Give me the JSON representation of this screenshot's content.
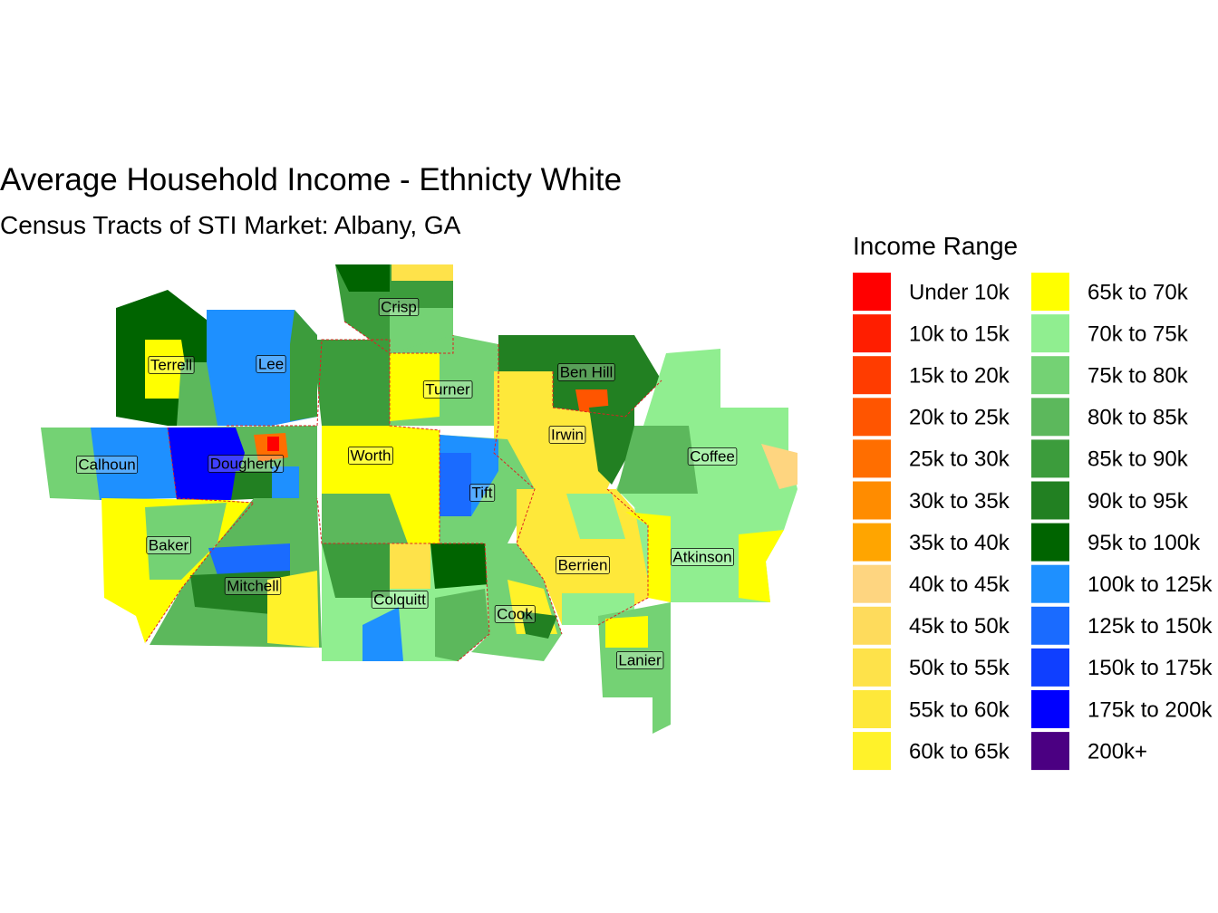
{
  "title": "Average Household Income - Ethnicty White",
  "subtitle": "Census Tracts of STI Market: Albany, GA",
  "legend": {
    "title": "Income Range",
    "items": [
      {
        "label": "Under 10k",
        "color": "#ff0000"
      },
      {
        "label": "10k to 15k",
        "color": "#ff1e00"
      },
      {
        "label": "15k to 20k",
        "color": "#ff3c00"
      },
      {
        "label": "20k to 25k",
        "color": "#ff5500"
      },
      {
        "label": "25k to 30k",
        "color": "#ff6e00"
      },
      {
        "label": "30k to 35k",
        "color": "#ff8c00"
      },
      {
        "label": "35k to 40k",
        "color": "#ffa500"
      },
      {
        "label": "40k to 45k",
        "color": "#fed580"
      },
      {
        "label": "45k to 50k",
        "color": "#fedb5c"
      },
      {
        "label": "50k to 55k",
        "color": "#fee24a"
      },
      {
        "label": "55k to 60k",
        "color": "#fee83a"
      },
      {
        "label": "60k to 65k",
        "color": "#fff22a"
      },
      {
        "label": "65k to 70k",
        "color": "#ffff00"
      },
      {
        "label": "70k to 75k",
        "color": "#90ee90"
      },
      {
        "label": "75k to 80k",
        "color": "#74d274"
      },
      {
        "label": "80k to 85k",
        "color": "#5cb85c"
      },
      {
        "label": "85k to 90k",
        "color": "#3c9c3c"
      },
      {
        "label": "90k to 95k",
        "color": "#228022"
      },
      {
        "label": "95k to 100k",
        "color": "#006400"
      },
      {
        "label": "100k to 125k",
        "color": "#1e90ff"
      },
      {
        "label": "125k to 150k",
        "color": "#1a6bff"
      },
      {
        "label": "150k to 175k",
        "color": "#0f3fff"
      },
      {
        "label": "175k to 200k",
        "color": "#0000ff"
      },
      {
        "label": "200k+",
        "color": "#4b0082"
      }
    ]
  },
  "counties": [
    "Crisp",
    "Terrell",
    "Lee",
    "Turner",
    "Ben Hill",
    "Irwin",
    "Calhoun",
    "Dougherty",
    "Worth",
    "Tift",
    "Coffee",
    "Baker",
    "Mitchell",
    "Berrien",
    "Atkinson",
    "Colquitt",
    "Cook",
    "Lanier"
  ]
}
